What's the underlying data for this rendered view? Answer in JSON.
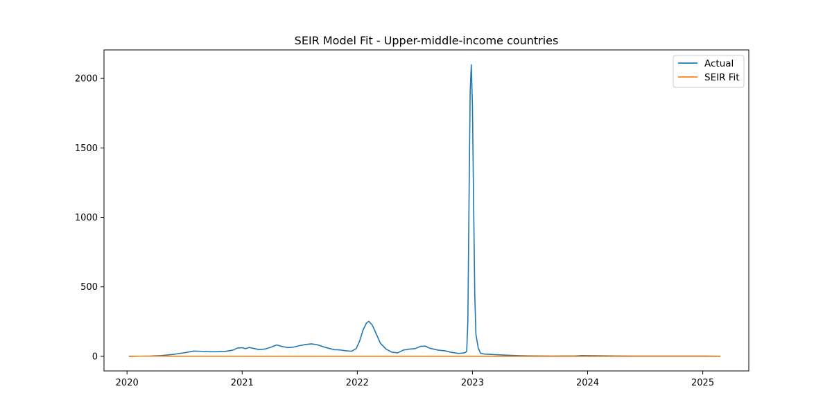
{
  "chart_data": {
    "type": "line",
    "title": "SEIR Model Fit - Upper-middle-income countries",
    "xlabel": "",
    "ylabel": "",
    "xlim": [
      2019.8,
      2025.4
    ],
    "ylim": [
      -105,
      2205
    ],
    "x_ticks": [
      {
        "value": 2020,
        "label": "2020"
      },
      {
        "value": 2021,
        "label": "2021"
      },
      {
        "value": 2022,
        "label": "2022"
      },
      {
        "value": 2023,
        "label": "2023"
      },
      {
        "value": 2024,
        "label": "2024"
      },
      {
        "value": 2025,
        "label": "2025"
      }
    ],
    "y_ticks": [
      {
        "value": 0,
        "label": "0"
      },
      {
        "value": 500,
        "label": "500"
      },
      {
        "value": 1000,
        "label": "1000"
      },
      {
        "value": 1500,
        "label": "1500"
      },
      {
        "value": 2000,
        "label": "2000"
      }
    ],
    "grid": false,
    "legend_position": "top-right",
    "series": [
      {
        "name": "Actual",
        "color": "#1f77b4",
        "points": [
          [
            2020.02,
            0
          ],
          [
            2020.1,
            1
          ],
          [
            2020.2,
            2
          ],
          [
            2020.3,
            6
          ],
          [
            2020.4,
            14
          ],
          [
            2020.5,
            26
          ],
          [
            2020.58,
            38
          ],
          [
            2020.65,
            36
          ],
          [
            2020.72,
            33
          ],
          [
            2020.78,
            33
          ],
          [
            2020.85,
            35
          ],
          [
            2020.92,
            45
          ],
          [
            2020.96,
            60
          ],
          [
            2021.0,
            62
          ],
          [
            2021.03,
            55
          ],
          [
            2021.06,
            64
          ],
          [
            2021.1,
            57
          ],
          [
            2021.15,
            48
          ],
          [
            2021.2,
            53
          ],
          [
            2021.25,
            66
          ],
          [
            2021.3,
            82
          ],
          [
            2021.35,
            70
          ],
          [
            2021.4,
            63
          ],
          [
            2021.45,
            67
          ],
          [
            2021.5,
            77
          ],
          [
            2021.55,
            85
          ],
          [
            2021.6,
            90
          ],
          [
            2021.65,
            84
          ],
          [
            2021.7,
            70
          ],
          [
            2021.75,
            58
          ],
          [
            2021.8,
            48
          ],
          [
            2021.85,
            46
          ],
          [
            2021.9,
            40
          ],
          [
            2021.95,
            37
          ],
          [
            2021.99,
            55
          ],
          [
            2022.02,
            110
          ],
          [
            2022.05,
            190
          ],
          [
            2022.08,
            240
          ],
          [
            2022.1,
            252
          ],
          [
            2022.13,
            225
          ],
          [
            2022.16,
            170
          ],
          [
            2022.2,
            95
          ],
          [
            2022.25,
            52
          ],
          [
            2022.3,
            30
          ],
          [
            2022.35,
            25
          ],
          [
            2022.4,
            45
          ],
          [
            2022.45,
            52
          ],
          [
            2022.5,
            55
          ],
          [
            2022.55,
            72
          ],
          [
            2022.59,
            74
          ],
          [
            2022.63,
            58
          ],
          [
            2022.7,
            45
          ],
          [
            2022.76,
            40
          ],
          [
            2022.82,
            28
          ],
          [
            2022.88,
            21
          ],
          [
            2022.93,
            25
          ],
          [
            2022.95,
            35
          ],
          [
            2022.96,
            250
          ],
          [
            2022.97,
            1100
          ],
          [
            2022.98,
            1900
          ],
          [
            2022.99,
            2098
          ],
          [
            2023.0,
            1800
          ],
          [
            2023.01,
            1100
          ],
          [
            2023.02,
            450
          ],
          [
            2023.03,
            160
          ],
          [
            2023.05,
            60
          ],
          [
            2023.07,
            22
          ],
          [
            2023.1,
            17
          ],
          [
            2023.2,
            12
          ],
          [
            2023.3,
            8
          ],
          [
            2023.4,
            5
          ],
          [
            2023.5,
            3
          ],
          [
            2023.7,
            2
          ],
          [
            2023.9,
            3
          ],
          [
            2023.95,
            6
          ],
          [
            2024.0,
            5
          ],
          [
            2024.2,
            3
          ],
          [
            2024.4,
            2
          ],
          [
            2024.7,
            2
          ],
          [
            2025.0,
            2
          ],
          [
            2025.15,
            1
          ]
        ]
      },
      {
        "name": "SEIR Fit",
        "color": "#ff7f0e",
        "points": [
          [
            2020.02,
            0
          ],
          [
            2020.1,
            1
          ],
          [
            2020.3,
            1
          ],
          [
            2021.0,
            0
          ],
          [
            2022.0,
            0
          ],
          [
            2023.0,
            0
          ],
          [
            2024.0,
            0
          ],
          [
            2025.15,
            0
          ]
        ]
      }
    ]
  }
}
